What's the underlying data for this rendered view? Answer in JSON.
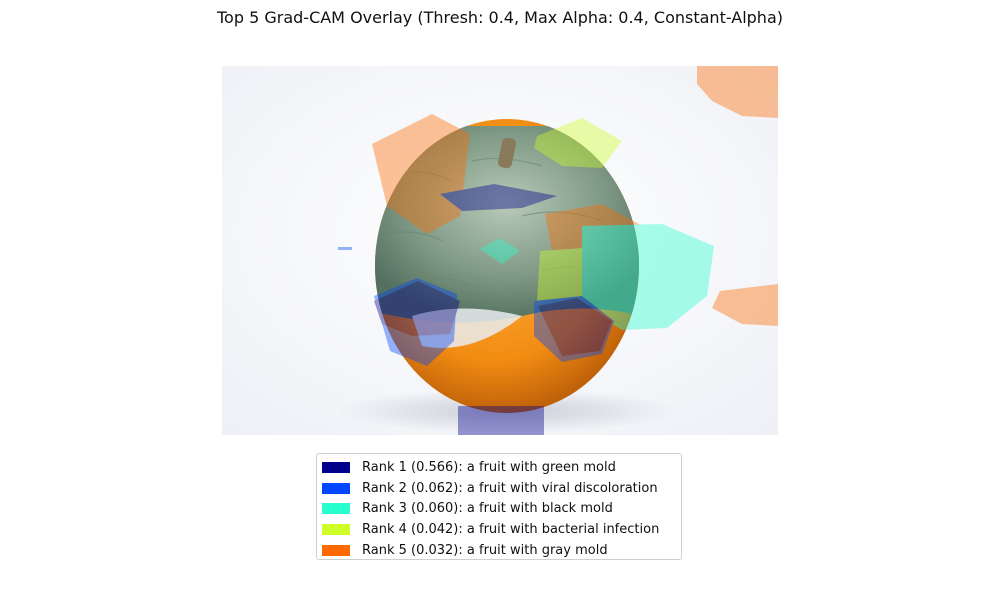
{
  "title": "Top 5 Grad-CAM Overlay (Thresh: 0.4, Max Alpha: 0.4, Constant-Alpha)",
  "image": {
    "subject": "orange-with-mold",
    "overlay_alpha": 0.4
  },
  "legend": {
    "items": [
      {
        "label": "Rank 1 (0.566): a fruit with green mold",
        "color": "#00008b"
      },
      {
        "label": "Rank 2 (0.062): a fruit with viral discoloration",
        "color": "#0047ff"
      },
      {
        "label": "Rank 3 (0.060): a fruit with black mold",
        "color": "#29ffce"
      },
      {
        "label": "Rank 4 (0.042): a fruit with bacterial infection",
        "color": "#ceff29"
      },
      {
        "label": "Rank 5 (0.032): a fruit with gray mold",
        "color": "#ff6a00"
      }
    ]
  }
}
